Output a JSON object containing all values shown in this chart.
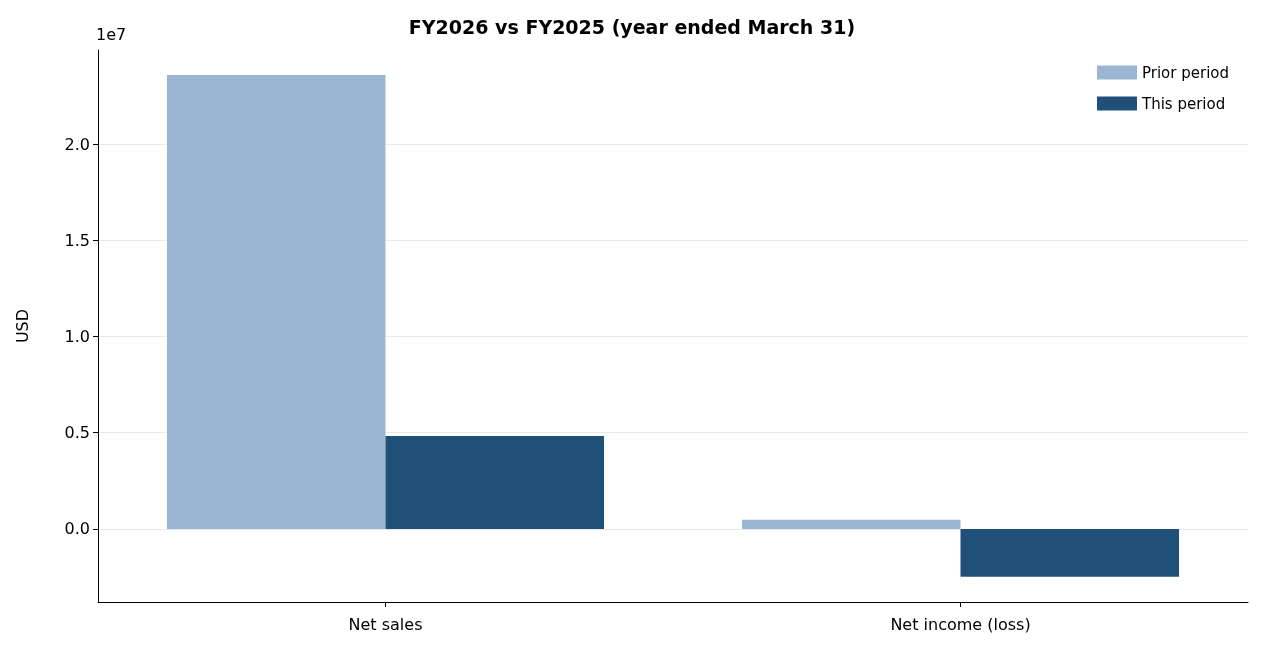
{
  "chart_data": {
    "type": "bar",
    "title": "FY2026 vs FY2025 (year ended March 31)",
    "ylabel": "USD",
    "annotations": [
      "1e7"
    ],
    "categories": [
      "Net sales",
      "Net income (loss)"
    ],
    "series": [
      {
        "name": "Prior period",
        "color": "#9bb6d3",
        "values": [
          2.36,
          0.047
        ]
      },
      {
        "name": "This period",
        "color": "#204f78",
        "values": [
          0.483,
          -0.249
        ]
      }
    ],
    "ylim": [
      -0.38,
      2.49
    ],
    "yticks": [
      {
        "value": 0,
        "label": "0.0"
      },
      0.5,
      {
        "value": 1,
        "label": "1.0"
      },
      1.5,
      {
        "value": 2,
        "label": "2.0"
      }
    ],
    "grid": "y",
    "legend": "top right"
  }
}
